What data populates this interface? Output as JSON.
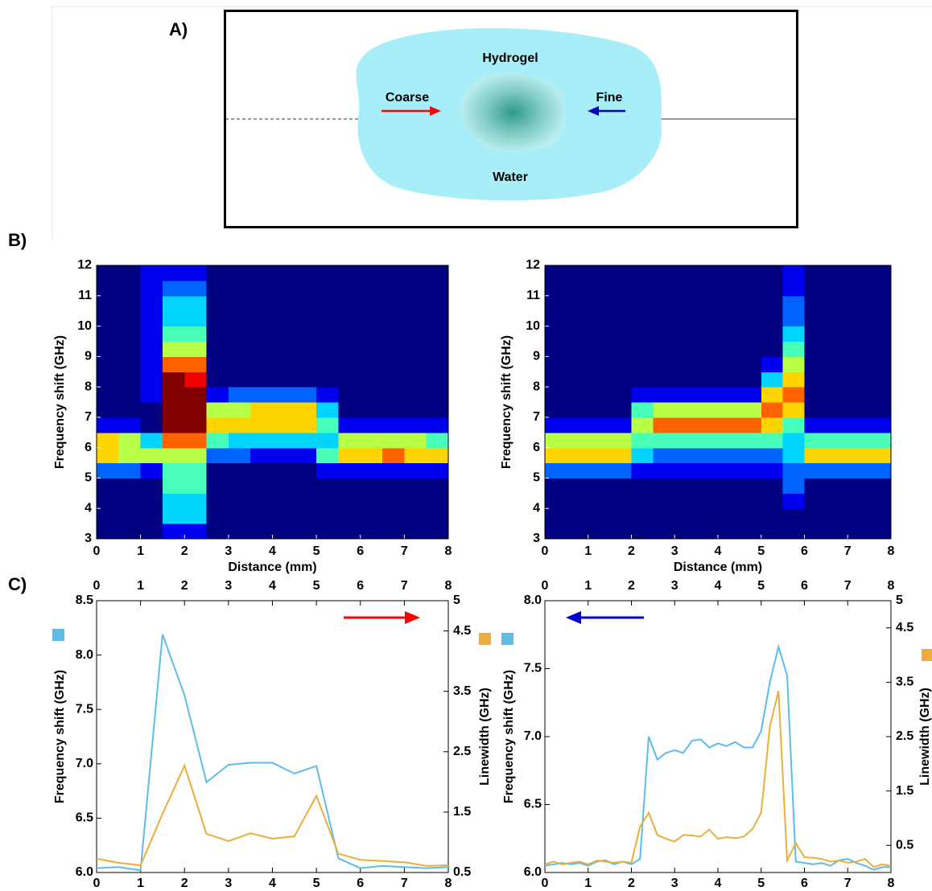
{
  "panel_labels": [
    "A)",
    "B)",
    "C)"
  ],
  "diagram": {
    "hydrogel": "Hydrogel",
    "coarse": "Coarse",
    "fine": "Fine",
    "water": "Water"
  },
  "chart_data": [
    {
      "type": "heatmap",
      "xlabel": "Distance (mm)",
      "ylabel": "Frequency shift (GHz)",
      "xlim": [
        0,
        8
      ],
      "xticks": [
        0,
        1,
        2,
        3,
        4,
        5,
        6,
        7,
        8
      ],
      "ylim": [
        3,
        12
      ],
      "yticks": [
        3,
        4,
        5,
        6,
        7,
        8,
        9,
        10,
        11,
        12
      ],
      "x_edges": [
        0,
        0.5,
        1,
        1.5,
        2,
        2.5,
        3,
        3.5,
        4,
        4.5,
        5,
        5.5,
        6,
        6.5,
        7,
        7.5,
        8
      ],
      "y_edges": [
        3,
        3.5,
        4,
        4.5,
        5,
        5.5,
        6,
        6.5,
        7,
        7.5,
        8,
        8.5,
        9,
        9.5,
        10,
        10.5,
        11,
        11.5,
        12
      ],
      "zlim": [
        0,
        9
      ],
      "z": [
        [
          0,
          0,
          0,
          0,
          2,
          6,
          6,
          1,
          0,
          0,
          0,
          0,
          0,
          0,
          0,
          0,
          0,
          0
        ],
        [
          0,
          0,
          0,
          0,
          2,
          5,
          5,
          1,
          0,
          0,
          0,
          0,
          0,
          0,
          0,
          0,
          0,
          0
        ],
        [
          0,
          0,
          0,
          0,
          1,
          5,
          3,
          0,
          0,
          1,
          1,
          1,
          1,
          1,
          1,
          1,
          1,
          1
        ],
        [
          1,
          3,
          3,
          4,
          4,
          5,
          7,
          9,
          9,
          9,
          9,
          7,
          5,
          4,
          3,
          3,
          2,
          1
        ],
        [
          1,
          3,
          3,
          4,
          4,
          5,
          7,
          9,
          9,
          9,
          8,
          7,
          5,
          4,
          3,
          3,
          2,
          1
        ],
        [
          0,
          0,
          0,
          0,
          0,
          2,
          4,
          6,
          5,
          1,
          0,
          0,
          0,
          0,
          0,
          0,
          0,
          0
        ],
        [
          0,
          0,
          0,
          0,
          0,
          2,
          3,
          6,
          5,
          2,
          0,
          0,
          0,
          0,
          0,
          0,
          0,
          0
        ],
        [
          0,
          0,
          0,
          0,
          0,
          1,
          3,
          6,
          6,
          2,
          0,
          0,
          0,
          0,
          0,
          0,
          0,
          0
        ],
        [
          0,
          0,
          0,
          0,
          0,
          1,
          3,
          6,
          6,
          2,
          0,
          0,
          0,
          0,
          0,
          0,
          0,
          0
        ],
        [
          0,
          0,
          0,
          0,
          0,
          1,
          3,
          6,
          6,
          2,
          0,
          0,
          0,
          0,
          0,
          0,
          0,
          0
        ],
        [
          0,
          0,
          0,
          0,
          1,
          4,
          3,
          4,
          3,
          1,
          0,
          0,
          0,
          0,
          0,
          0,
          0,
          0
        ],
        [
          0,
          0,
          0,
          0,
          1,
          6,
          5,
          1,
          0,
          0,
          0,
          0,
          0,
          0,
          0,
          0,
          0,
          0
        ],
        [
          0,
          0,
          0,
          0,
          1,
          6,
          5,
          1,
          0,
          0,
          0,
          0,
          0,
          0,
          0,
          0,
          0,
          0
        ],
        [
          0,
          0,
          0,
          0,
          1,
          7,
          5,
          1,
          0,
          0,
          0,
          0,
          0,
          0,
          0,
          0,
          0,
          0
        ],
        [
          0,
          0,
          0,
          0,
          1,
          6,
          5,
          1,
          0,
          0,
          0,
          0,
          0,
          0,
          0,
          0,
          0,
          0
        ],
        [
          0,
          0,
          0,
          0,
          1,
          6,
          4,
          1,
          0,
          0,
          0,
          0,
          0,
          0,
          0,
          0,
          0,
          0
        ]
      ]
    },
    {
      "type": "heatmap",
      "xlabel": "Distance (mm)",
      "ylabel": "Frequency shift (GHz)",
      "xlim": [
        0,
        8
      ],
      "xticks": [
        0,
        1,
        2,
        3,
        4,
        5,
        6,
        7,
        8
      ],
      "ylim": [
        3,
        12
      ],
      "yticks": [
        3,
        4,
        5,
        6,
        7,
        8,
        9,
        10,
        11,
        12
      ],
      "x_edges": [
        0,
        0.5,
        1,
        1.5,
        2,
        2.5,
        3,
        3.5,
        4,
        4.5,
        5,
        5.5,
        6,
        6.5,
        7,
        7.5,
        8
      ],
      "y_edges": [
        3,
        3.5,
        4,
        4.5,
        5,
        5.5,
        6,
        6.5,
        7,
        7.5,
        8,
        8.5,
        9,
        9.5,
        10,
        10.5,
        11,
        11.5,
        12
      ],
      "zlim": [
        0,
        9
      ],
      "z": [
        [
          0,
          0,
          0,
          0,
          2,
          6,
          5,
          1,
          0,
          0,
          0,
          0,
          0,
          0,
          0,
          0,
          0,
          0
        ],
        [
          0,
          0,
          0,
          0,
          2,
          6,
          5,
          1,
          0,
          0,
          0,
          0,
          0,
          0,
          0,
          0,
          0,
          0
        ],
        [
          0,
          0,
          0,
          0,
          2,
          6,
          5,
          1,
          0,
          0,
          0,
          0,
          0,
          0,
          0,
          0,
          0,
          0
        ],
        [
          0,
          0,
          0,
          0,
          2,
          6,
          5,
          1,
          0,
          0,
          0,
          0,
          0,
          0,
          0,
          0,
          0,
          0
        ],
        [
          0,
          0,
          0,
          0,
          1,
          3,
          4,
          5,
          4,
          1,
          0,
          0,
          0,
          0,
          0,
          0,
          0,
          0
        ],
        [
          0,
          0,
          0,
          0,
          1,
          2,
          4,
          7,
          5,
          1,
          0,
          0,
          0,
          0,
          0,
          0,
          0,
          0
        ],
        [
          0,
          0,
          0,
          0,
          1,
          2,
          4,
          7,
          5,
          1,
          0,
          0,
          0,
          0,
          0,
          0,
          0,
          0
        ],
        [
          0,
          0,
          0,
          0,
          1,
          2,
          4,
          7,
          5,
          1,
          0,
          0,
          0,
          0,
          0,
          0,
          0,
          0
        ],
        [
          0,
          0,
          0,
          0,
          1,
          2,
          4,
          7,
          5,
          1,
          0,
          0,
          0,
          0,
          0,
          0,
          0,
          0
        ],
        [
          0,
          0,
          0,
          0,
          1,
          2,
          4,
          7,
          5,
          1,
          0,
          0,
          0,
          0,
          0,
          0,
          0,
          0
        ],
        [
          0,
          0,
          0,
          0,
          1,
          2,
          4,
          6,
          7,
          6,
          3,
          1,
          0,
          0,
          0,
          0,
          0,
          0
        ],
        [
          0,
          0,
          1,
          2,
          2,
          3,
          3,
          4,
          6,
          7,
          6,
          5,
          4,
          3,
          2,
          2,
          1,
          1
        ],
        [
          0,
          0,
          0,
          0,
          2,
          6,
          4,
          1,
          0,
          0,
          0,
          0,
          0,
          0,
          0,
          0,
          0,
          0
        ],
        [
          0,
          0,
          0,
          0,
          2,
          6,
          4,
          1,
          0,
          0,
          0,
          0,
          0,
          0,
          0,
          0,
          0,
          0
        ],
        [
          0,
          0,
          0,
          0,
          2,
          6,
          4,
          1,
          0,
          0,
          0,
          0,
          0,
          0,
          0,
          0,
          0,
          0
        ],
        [
          0,
          0,
          0,
          0,
          2,
          6,
          4,
          1,
          0,
          0,
          0,
          0,
          0,
          0,
          0,
          0,
          0,
          0
        ]
      ]
    },
    {
      "type": "line",
      "ylabel": "Frequency shift (GHz)",
      "y2label": "Linewidth (GHz)",
      "xlim": [
        0,
        8
      ],
      "xticks": [
        0,
        1,
        2,
        3,
        4,
        5,
        6,
        7,
        8
      ],
      "ylim": [
        6,
        8.5
      ],
      "yticks": [
        {
          "value": 6,
          "label": "6.0"
        },
        {
          "value": 6.5,
          "label": "6.5"
        },
        {
          "value": 7,
          "label": "7.0"
        },
        {
          "value": 7.5,
          "label": "7.5"
        },
        {
          "value": 8,
          "label": "8.0"
        },
        {
          "value": 8.5,
          "label": "8.5"
        }
      ],
      "y2lim": [
        0.5,
        5
      ],
      "y2ticks": [
        0.5,
        1.5,
        2.5,
        3.5,
        4.5,
        5
      ],
      "x": [
        0,
        0.5,
        1,
        1.5,
        2,
        2.5,
        3,
        3.5,
        4,
        4.5,
        5,
        5.5,
        6,
        6.5,
        7,
        7.5,
        8
      ],
      "series": [
        {
          "color": "#5bbde8",
          "values": [
            6.04,
            6.05,
            6.02,
            8.19,
            7.63,
            6.83,
            6.99,
            7.01,
            7.01,
            6.91,
            6.98,
            6.13,
            6.04,
            6.06,
            6.05,
            6.04,
            6.05
          ]
        },
        {
          "color": "#ebae3c",
          "axis": "y2",
          "values": [
            0.73,
            0.66,
            0.62,
            1.47,
            2.27,
            1.14,
            1.02,
            1.15,
            1.06,
            1.1,
            1.77,
            0.81,
            0.71,
            0.69,
            0.67,
            0.61,
            0.62
          ]
        }
      ]
    },
    {
      "type": "line",
      "ylabel": "Frequency shift (GHz)",
      "y2label": "Linewidth (GHz)",
      "xlim": [
        0,
        8
      ],
      "xticks": [
        0,
        1,
        2,
        3,
        4,
        5,
        6,
        7,
        8
      ],
      "ylim": [
        6,
        8
      ],
      "yticks": [
        {
          "value": 6,
          "label": "6.0"
        },
        {
          "value": 6.5,
          "label": "6.5"
        },
        {
          "value": 7,
          "label": "7.0"
        },
        {
          "value": 7.5,
          "label": "7.5"
        },
        {
          "value": 8,
          "label": "8.0"
        }
      ],
      "y2lim": [
        0,
        5
      ],
      "y2ticks": [
        0.5,
        1.5,
        2.5,
        3.5,
        4.5,
        5
      ],
      "x": [
        0,
        0.2,
        0.4,
        0.6,
        0.8,
        1,
        1.2,
        1.4,
        1.6,
        1.8,
        2,
        2.2,
        2.4,
        2.6,
        2.8,
        3,
        3.2,
        3.4,
        3.6,
        3.8,
        4,
        4.2,
        4.4,
        4.6,
        4.8,
        5,
        5.2,
        5.4,
        5.6,
        5.8,
        6,
        6.2,
        6.4,
        6.6,
        6.8,
        7,
        7.2,
        7.4,
        7.6,
        7.8,
        8
      ],
      "series": [
        {
          "color": "#5bbde8",
          "values": [
            6.05,
            6.06,
            6.07,
            6.06,
            6.07,
            6.05,
            6.08,
            6.09,
            6.06,
            6.08,
            6.06,
            6.1,
            7.0,
            6.83,
            6.88,
            6.9,
            6.88,
            6.97,
            6.98,
            6.92,
            6.95,
            6.93,
            6.96,
            6.92,
            6.92,
            7.04,
            7.4,
            7.66,
            7.45,
            6.08,
            6.07,
            6.06,
            6.07,
            6.05,
            6.09,
            6.1,
            6.07,
            6.05,
            6.02,
            6.04,
            6.04
          ]
        },
        {
          "color": "#ebae3c",
          "axis": "y2",
          "values": [
            0.15,
            0.2,
            0.15,
            0.18,
            0.2,
            0.15,
            0.22,
            0.2,
            0.18,
            0.2,
            0.18,
            0.84,
            1.1,
            0.69,
            0.62,
            0.57,
            0.69,
            0.68,
            0.66,
            0.79,
            0.62,
            0.65,
            0.63,
            0.66,
            0.8,
            1.1,
            2.68,
            3.34,
            0.22,
            0.54,
            0.28,
            0.27,
            0.25,
            0.2,
            0.22,
            0.18,
            0.2,
            0.25,
            0.1,
            0.15,
            0.12
          ]
        }
      ]
    }
  ]
}
